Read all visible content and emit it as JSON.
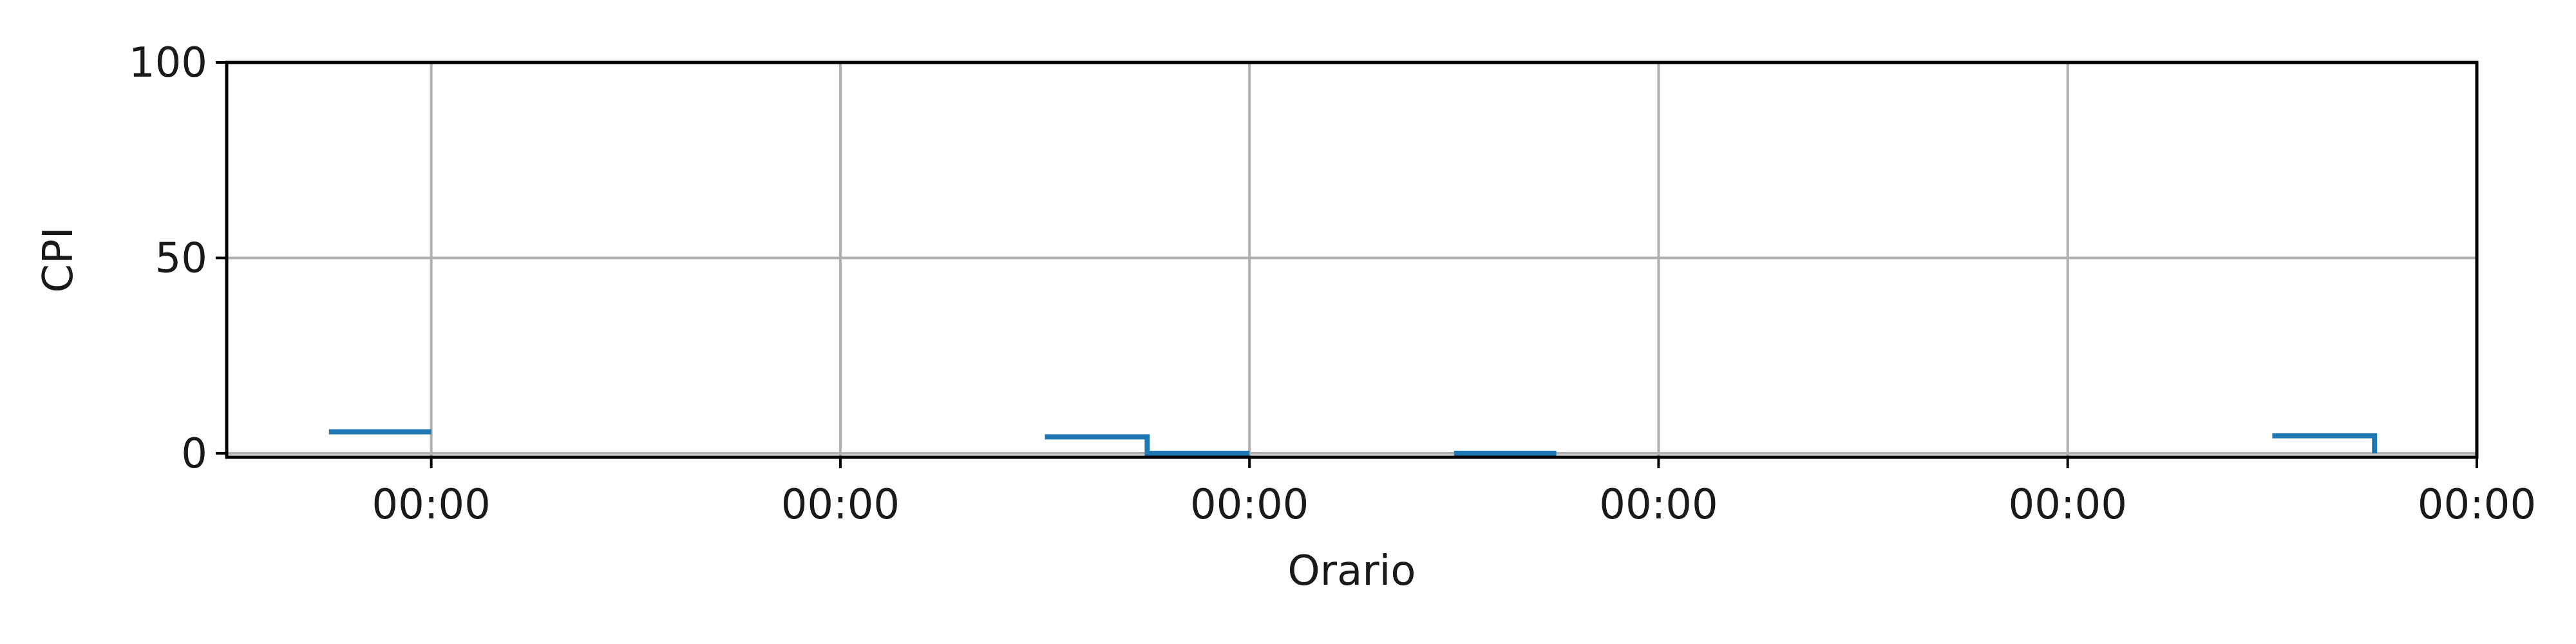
{
  "chart_data": {
    "type": "line",
    "step": "post",
    "xlabel": "Orario",
    "ylabel": "CPI",
    "xlim": [
      -0.5,
      5
    ],
    "ylim": [
      -1,
      100
    ],
    "x_tick_positions": [
      0,
      1,
      2,
      3,
      4,
      5
    ],
    "x_tick_labels": [
      "00:00",
      "00:00",
      "00:00",
      "00:00",
      "00:00",
      "00:00"
    ],
    "y_ticks": [
      0,
      50,
      100
    ],
    "grid": true,
    "series": [
      {
        "color": "#1f77b4",
        "segments": [
          [
            [
              -0.25,
              5.5
            ],
            [
              0,
              5.5
            ]
          ],
          [
            [
              1.5,
              4.2
            ],
            [
              1.75,
              4.2
            ],
            [
              1.75,
              0
            ],
            [
              2,
              0
            ]
          ],
          [
            [
              2.5,
              0
            ],
            [
              2.75,
              0
            ]
          ],
          [
            [
              4.5,
              4.5
            ],
            [
              4.75,
              4.5
            ],
            [
              4.75,
              0
            ]
          ]
        ]
      }
    ]
  },
  "colors": {
    "line": "#1f77b4",
    "grid": "#b0b0b0",
    "axis": "#000000"
  }
}
